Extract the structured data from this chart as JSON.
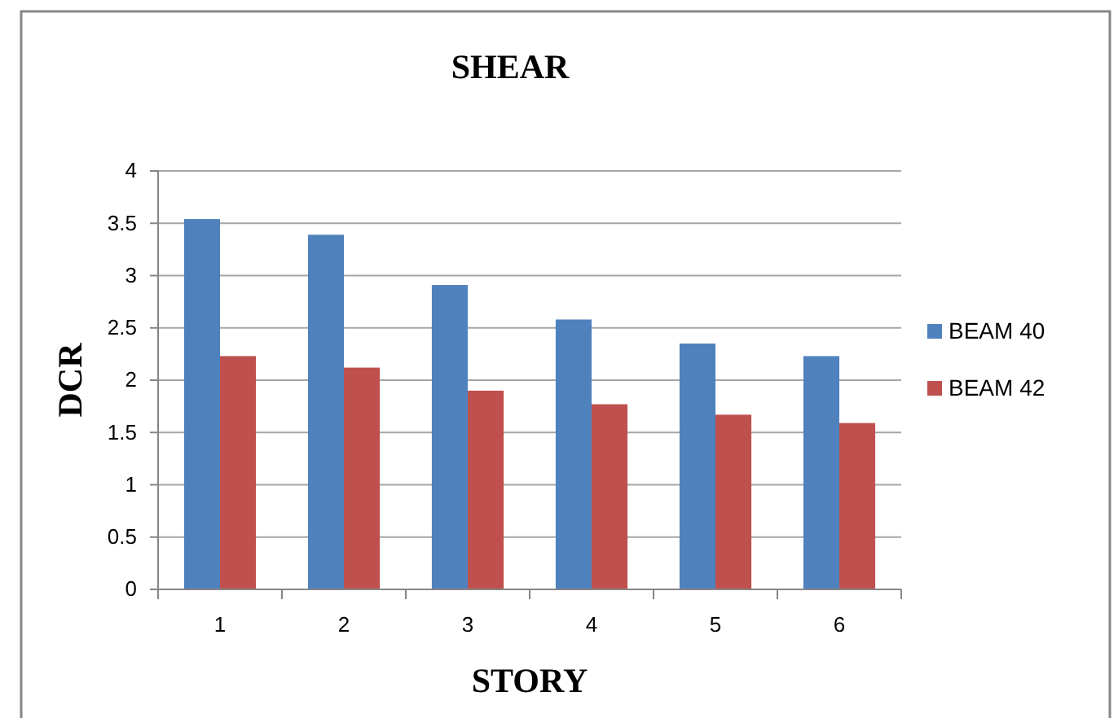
{
  "chart_data": {
    "type": "bar",
    "title": "SHEAR",
    "xlabel": "STORY",
    "ylabel": "DCR",
    "categories": [
      "1",
      "2",
      "3",
      "4",
      "5",
      "6"
    ],
    "series": [
      {
        "name": "BEAM 40",
        "color": "#4f81bd",
        "values": [
          3.54,
          3.39,
          2.91,
          2.58,
          2.35,
          2.23
        ]
      },
      {
        "name": "BEAM 42",
        "color": "#c0504d",
        "values": [
          2.23,
          2.12,
          1.9,
          1.77,
          1.67,
          1.59
        ]
      }
    ],
    "ylim": [
      0,
      4
    ],
    "yticks": [
      0,
      0.5,
      1,
      1.5,
      2,
      2.5,
      3,
      3.5,
      4
    ],
    "grid": "y",
    "legend": "right"
  }
}
